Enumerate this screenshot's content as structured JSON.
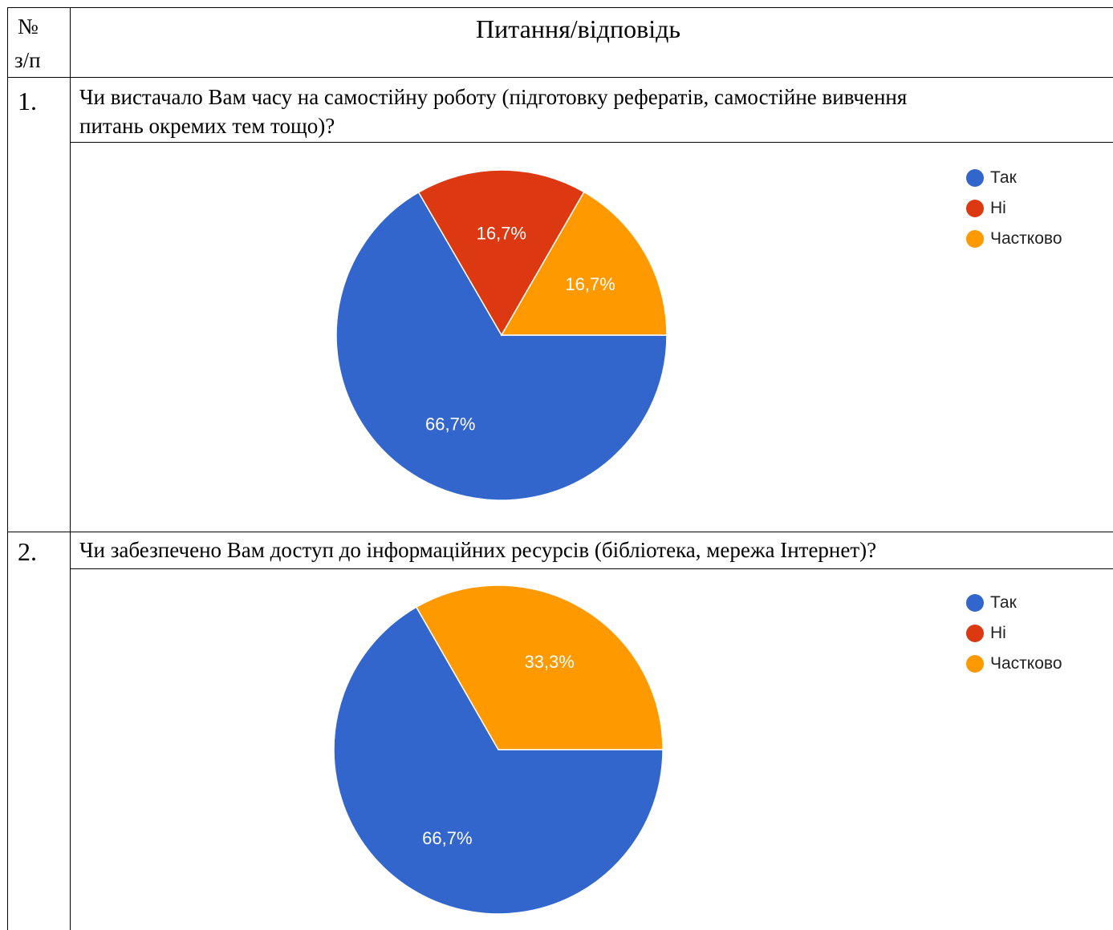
{
  "table": {
    "header": {
      "col1_line1": "№",
      "col1_line2": "з/п",
      "col2": "Питання/відповідь"
    },
    "rows": [
      {
        "number": "1.",
        "question_line1": "Чи вистачало Вам часу на самостійну роботу (підготовку рефератів, самостійне вивчення",
        "question_line2": "питань окремих тем тощо)?"
      },
      {
        "number": "2.",
        "question_line1": "Чи забезпечено Вам доступ до інформаційних ресурсів (бібліотека, мережа Інтернет)?"
      }
    ]
  },
  "chart_data": [
    {
      "type": "pie",
      "title": "",
      "slices": [
        {
          "label": "Так",
          "value": 66.7,
          "color": "#3366cc",
          "display": "66,7%"
        },
        {
          "label": "Ні",
          "value": 16.7,
          "color": "#dc3912",
          "display": "16,7%"
        },
        {
          "label": "Частково",
          "value": 16.7,
          "color": "#ff9900",
          "display": "16,7%"
        }
      ],
      "legend": [
        "Так",
        "Ні",
        "Частково"
      ],
      "legend_position": "right"
    },
    {
      "type": "pie",
      "title": "",
      "slices": [
        {
          "label": "Так",
          "value": 66.7,
          "color": "#3366cc",
          "display": "66,7%"
        },
        {
          "label": "Ні",
          "value": 0,
          "color": "#dc3912",
          "display": ""
        },
        {
          "label": "Частково",
          "value": 33.3,
          "color": "#ff9900",
          "display": "33,3%"
        }
      ],
      "legend": [
        "Так",
        "Ні",
        "Частково"
      ],
      "legend_position": "right"
    }
  ]
}
